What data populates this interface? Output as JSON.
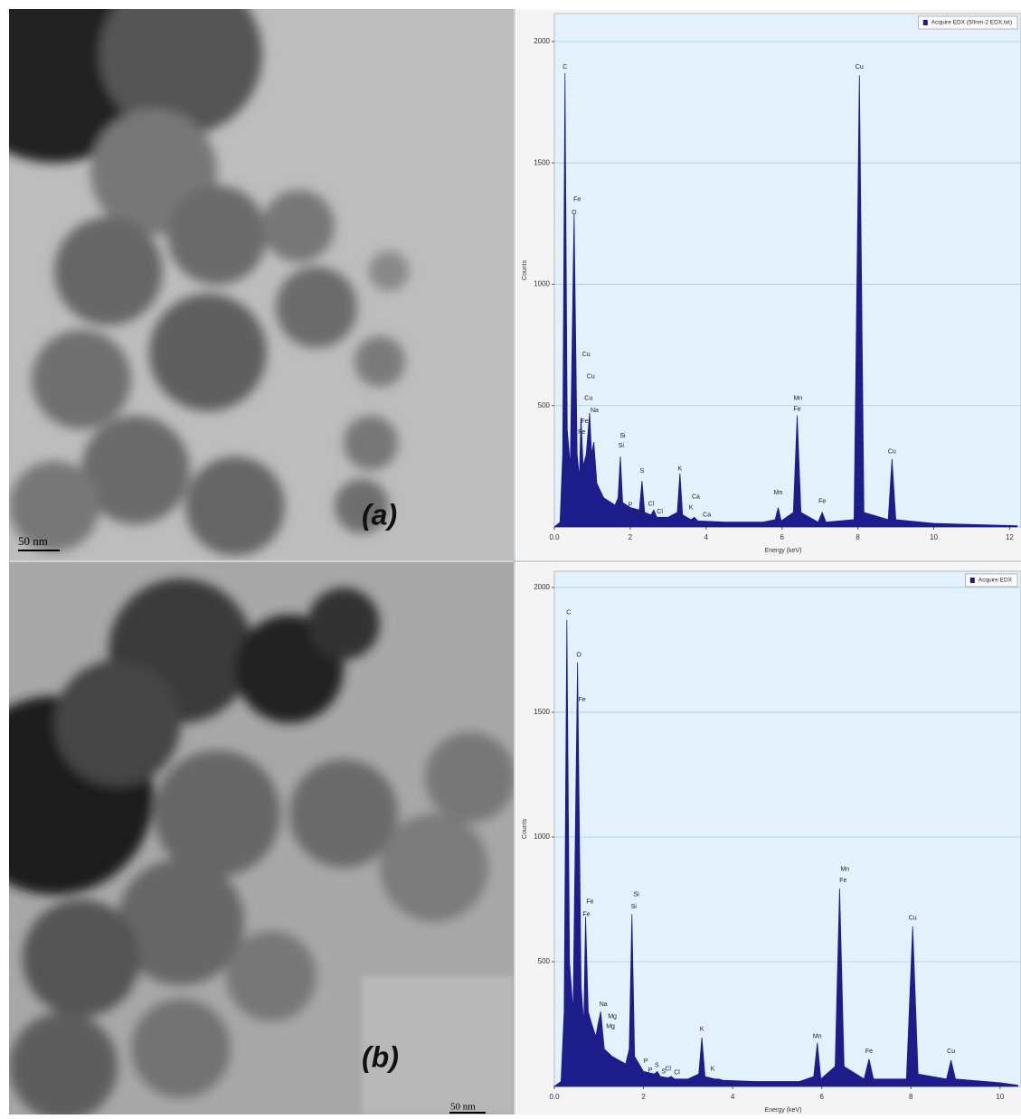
{
  "panels": [
    {
      "label": "(a)",
      "scale_bar": "50 nm"
    },
    {
      "label": "(b)",
      "scale_bar": "50 nm"
    }
  ],
  "chart_data": [
    {
      "type": "area",
      "xlabel": "Energy (keV)",
      "ylabel": "Counts",
      "xlim": [
        0,
        12.3
      ],
      "ylim": [
        0,
        2115
      ],
      "xticks": [
        {
          "value": 0,
          "label": "0.0"
        },
        2,
        4,
        6,
        8,
        10,
        12
      ],
      "yticks": [
        500,
        1000,
        1500,
        2000
      ],
      "grid": true,
      "legend": "top-right",
      "x": [
        0,
        0.15,
        0.22,
        0.28,
        0.34,
        0.42,
        0.52,
        0.6,
        0.66,
        0.7,
        0.76,
        0.84,
        0.93,
        0.98,
        1.04,
        1.12,
        1.3,
        1.6,
        1.68,
        1.74,
        1.8,
        2.0,
        2.24,
        2.31,
        2.38,
        2.55,
        2.62,
        2.7,
        3.0,
        3.24,
        3.31,
        3.38,
        3.6,
        3.69,
        3.78,
        4.5,
        5.5,
        5.82,
        5.9,
        5.98,
        6.3,
        6.4,
        6.5,
        6.95,
        7.06,
        7.16,
        7.9,
        8.04,
        8.16,
        8.8,
        8.9,
        9.0,
        10,
        11,
        12.2
      ],
      "series": [
        {
          "name": "Acquire EDX (50nm-2 EDX.txt)",
          "color": "#1c1c8a",
          "values": [
            0,
            20,
            300,
            1870,
            400,
            250,
            1290,
            300,
            200,
            450,
            250,
            300,
            470,
            300,
            350,
            180,
            120,
            90,
            120,
            290,
            100,
            80,
            70,
            190,
            60,
            50,
            70,
            40,
            40,
            60,
            220,
            50,
            30,
            40,
            25,
            20,
            20,
            30,
            80,
            25,
            60,
            460,
            60,
            20,
            60,
            20,
            30,
            1860,
            60,
            30,
            280,
            30,
            15,
            10,
            5
          ]
        }
      ],
      "annotations": [
        {
          "text": "C",
          "x": 0.28,
          "y": 1895
        },
        {
          "text": "Fe",
          "x": 0.6,
          "y": 1350
        },
        {
          "text": "O",
          "x": 0.52,
          "y": 1295
        },
        {
          "text": "Cu",
          "x": 0.84,
          "y": 710
        },
        {
          "text": "Cu",
          "x": 0.96,
          "y": 620
        },
        {
          "text": "Cu",
          "x": 0.9,
          "y": 530
        },
        {
          "text": "Na",
          "x": 1.06,
          "y": 480
        },
        {
          "text": "Fe",
          "x": 0.8,
          "y": 435
        },
        {
          "text": "Fe",
          "x": 0.72,
          "y": 390
        },
        {
          "text": "Si",
          "x": 1.8,
          "y": 375
        },
        {
          "text": "Si",
          "x": 1.76,
          "y": 335
        },
        {
          "text": "S",
          "x": 2.31,
          "y": 230
        },
        {
          "text": "P",
          "x": 2.0,
          "y": 90
        },
        {
          "text": "P",
          "x": 2.12,
          "y": 60
        },
        {
          "text": "S",
          "x": 2.3,
          "y": 55
        },
        {
          "text": "Cl",
          "x": 2.55,
          "y": 95
        },
        {
          "text": "Cl",
          "x": 2.78,
          "y": 62
        },
        {
          "text": "K",
          "x": 3.31,
          "y": 240
        },
        {
          "text": "Ca",
          "x": 3.73,
          "y": 125
        },
        {
          "text": "K",
          "x": 3.6,
          "y": 80
        },
        {
          "text": "Ca",
          "x": 4.02,
          "y": 50
        },
        {
          "text": "Mn",
          "x": 5.9,
          "y": 140
        },
        {
          "text": "Mn",
          "x": 6.42,
          "y": 530
        },
        {
          "text": "Fe",
          "x": 6.4,
          "y": 485
        },
        {
          "text": "Fe",
          "x": 7.06,
          "y": 105
        },
        {
          "text": "Cu",
          "x": 8.04,
          "y": 1895
        },
        {
          "text": "Cu",
          "x": 8.9,
          "y": 310
        }
      ]
    },
    {
      "type": "area",
      "xlabel": "Energy (keV)",
      "ylabel": "Counts",
      "xlim": [
        0,
        10.47
      ],
      "ylim": [
        0,
        2065
      ],
      "xticks": [
        {
          "value": 0,
          "label": "0.0"
        },
        2,
        4,
        6,
        8,
        10
      ],
      "yticks": [
        500,
        1000,
        1500,
        2000
      ],
      "grid": true,
      "legend": "top-right",
      "x": [
        0,
        0.15,
        0.22,
        0.28,
        0.34,
        0.42,
        0.52,
        0.6,
        0.66,
        0.7,
        0.76,
        0.84,
        0.93,
        0.98,
        1.04,
        1.12,
        1.3,
        1.6,
        1.68,
        1.74,
        1.8,
        2.0,
        2.24,
        2.31,
        2.38,
        2.55,
        2.62,
        2.7,
        3.0,
        3.24,
        3.31,
        3.38,
        3.6,
        3.69,
        3.78,
        4.5,
        5.5,
        5.82,
        5.9,
        5.98,
        6.3,
        6.4,
        6.5,
        6.95,
        7.06,
        7.16,
        7.9,
        8.04,
        8.16,
        8.8,
        8.9,
        9.0,
        10,
        10.4
      ],
      "series": [
        {
          "name": "Acquire EDX",
          "color": "#1c1c8a",
          "values": [
            0,
            20,
            300,
            1870,
            500,
            300,
            1700,
            400,
            250,
            680,
            300,
            250,
            200,
            250,
            300,
            150,
            120,
            90,
            150,
            690,
            120,
            60,
            50,
            60,
            40,
            35,
            40,
            30,
            30,
            50,
            196,
            40,
            30,
            30,
            25,
            20,
            20,
            40,
            175,
            30,
            80,
            793,
            80,
            30,
            110,
            30,
            30,
            641,
            50,
            30,
            105,
            30,
            15,
            5
          ]
        }
      ],
      "annotations": [
        {
          "text": "C",
          "x": 0.32,
          "y": 1900
        },
        {
          "text": "O",
          "x": 0.55,
          "y": 1730
        },
        {
          "text": "Fe",
          "x": 0.62,
          "y": 1550
        },
        {
          "text": "Fe",
          "x": 0.8,
          "y": 740
        },
        {
          "text": "Fe",
          "x": 0.72,
          "y": 690
        },
        {
          "text": "Si",
          "x": 1.84,
          "y": 770
        },
        {
          "text": "Si",
          "x": 1.78,
          "y": 720
        },
        {
          "text": "Na",
          "x": 1.1,
          "y": 330
        },
        {
          "text": "Mg",
          "x": 1.3,
          "y": 280
        },
        {
          "text": "Mg",
          "x": 1.26,
          "y": 240
        },
        {
          "text": "P",
          "x": 2.05,
          "y": 100
        },
        {
          "text": "P",
          "x": 2.15,
          "y": 65
        },
        {
          "text": "S",
          "x": 2.3,
          "y": 85
        },
        {
          "text": "S",
          "x": 2.45,
          "y": 60
        },
        {
          "text": "Cl",
          "x": 2.55,
          "y": 70
        },
        {
          "text": "Cl",
          "x": 2.75,
          "y": 55
        },
        {
          "text": "K",
          "x": 3.31,
          "y": 230
        },
        {
          "text": "K",
          "x": 3.55,
          "y": 70
        },
        {
          "text": "Mn",
          "x": 5.9,
          "y": 200
        },
        {
          "text": "Mn",
          "x": 6.52,
          "y": 870
        },
        {
          "text": "Fe",
          "x": 6.48,
          "y": 825
        },
        {
          "text": "Fe",
          "x": 7.06,
          "y": 140
        },
        {
          "text": "Cu",
          "x": 8.04,
          "y": 675
        },
        {
          "text": "Cu",
          "x": 8.9,
          "y": 140
        }
      ]
    }
  ]
}
